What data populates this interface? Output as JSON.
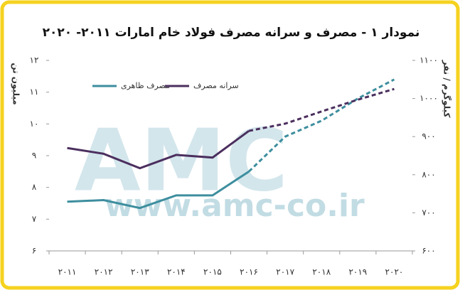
{
  "chart_data": {
    "type": "line",
    "title": "نمودار ۱ - مصرف و سرانه مصرف فولاد خام امارات ۲۰۱۱- ۲۰۲۰",
    "ylabel": "میلیون تن",
    "y2label": "کیلوگرم / نفر",
    "watermark": [
      "AMC",
      "www.amc-co.ir"
    ],
    "categories": [
      "۲۰۱۱",
      "۲۰۱۲",
      "۲۰۱۳",
      "۲۰۱۴",
      "۲۰۱۵",
      "۲۰۱۶",
      "۲۰۱۷",
      "۲۰۱۸",
      "۲۰۱۹",
      "۲۰۲۰"
    ],
    "series": [
      {
        "name": "مصرف ظاهری",
        "color": "#3d8e9e",
        "axis": "y",
        "values": [
          7.55,
          7.6,
          7.35,
          7.75,
          7.75,
          8.5,
          9.6,
          10.1,
          10.8,
          11.4
        ]
      },
      {
        "name": "سرانه مصرف",
        "color": "#4b2f5e",
        "axis": "y2",
        "values": [
          870,
          855,
          817,
          852,
          845,
          915,
          934,
          966,
          997,
          1025
        ]
      }
    ],
    "dashed_from": 5,
    "ylim": [
      6,
      12
    ],
    "yticks": [
      {
        "value": 6,
        "label": "۶"
      },
      {
        "value": 7,
        "label": "۷"
      },
      {
        "value": 8,
        "label": "۸"
      },
      {
        "value": 9,
        "label": "۹"
      },
      {
        "value": 10,
        "label": "۱۰"
      },
      {
        "value": 11,
        "label": "۱۱"
      },
      {
        "value": 12,
        "label": "۱۲"
      }
    ],
    "y2lim": [
      600,
      1100
    ],
    "y2ticks": [
      {
        "value": 600,
        "label": "۶۰۰"
      },
      {
        "value": 700,
        "label": "۷۰۰"
      },
      {
        "value": 800,
        "label": "۸۰۰"
      },
      {
        "value": 900,
        "label": "۹۰۰"
      },
      {
        "value": 1000,
        "label": "۱۰۰۰"
      },
      {
        "value": 1100,
        "label": "۱۱۰۰"
      }
    ],
    "grid": false,
    "legend": "top-left"
  }
}
